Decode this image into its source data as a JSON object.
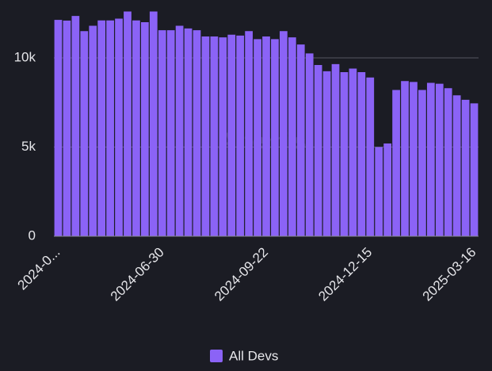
{
  "chart_data": {
    "type": "bar",
    "watermark": "Artemis",
    "categories": [
      "2024-0...",
      null,
      null,
      null,
      null,
      null,
      null,
      null,
      null,
      null,
      null,
      null,
      "2024-06-30",
      null,
      null,
      null,
      null,
      null,
      null,
      null,
      null,
      null,
      null,
      null,
      "2024-09-22",
      null,
      null,
      null,
      null,
      null,
      null,
      null,
      null,
      null,
      null,
      null,
      "2024-12-15",
      null,
      null,
      null,
      null,
      null,
      null,
      null,
      null,
      null,
      null,
      null,
      "2025-03-16"
    ],
    "series": [
      {
        "name": "All Devs",
        "color": "#8b63f6",
        "values": [
          12130,
          12090,
          12350,
          11500,
          11800,
          12100,
          12100,
          12200,
          12600,
          12100,
          12000,
          12600,
          11550,
          11550,
          11800,
          11650,
          11550,
          11200,
          11200,
          11150,
          11300,
          11250,
          11500,
          11050,
          11200,
          11050,
          11500,
          11150,
          10750,
          10250,
          9600,
          9250,
          9650,
          9200,
          9400,
          9200,
          8900,
          5000,
          5200,
          8200,
          8700,
          8650,
          8200,
          8600,
          8550,
          8300,
          7900,
          7650,
          7450
        ]
      }
    ],
    "ylim": [
      0,
      13200
    ],
    "yticks": [
      0,
      {
        "value": 5000,
        "label": "5k"
      },
      {
        "value": 10000,
        "label": "10k"
      }
    ],
    "grid": true,
    "legend": "bottom"
  }
}
